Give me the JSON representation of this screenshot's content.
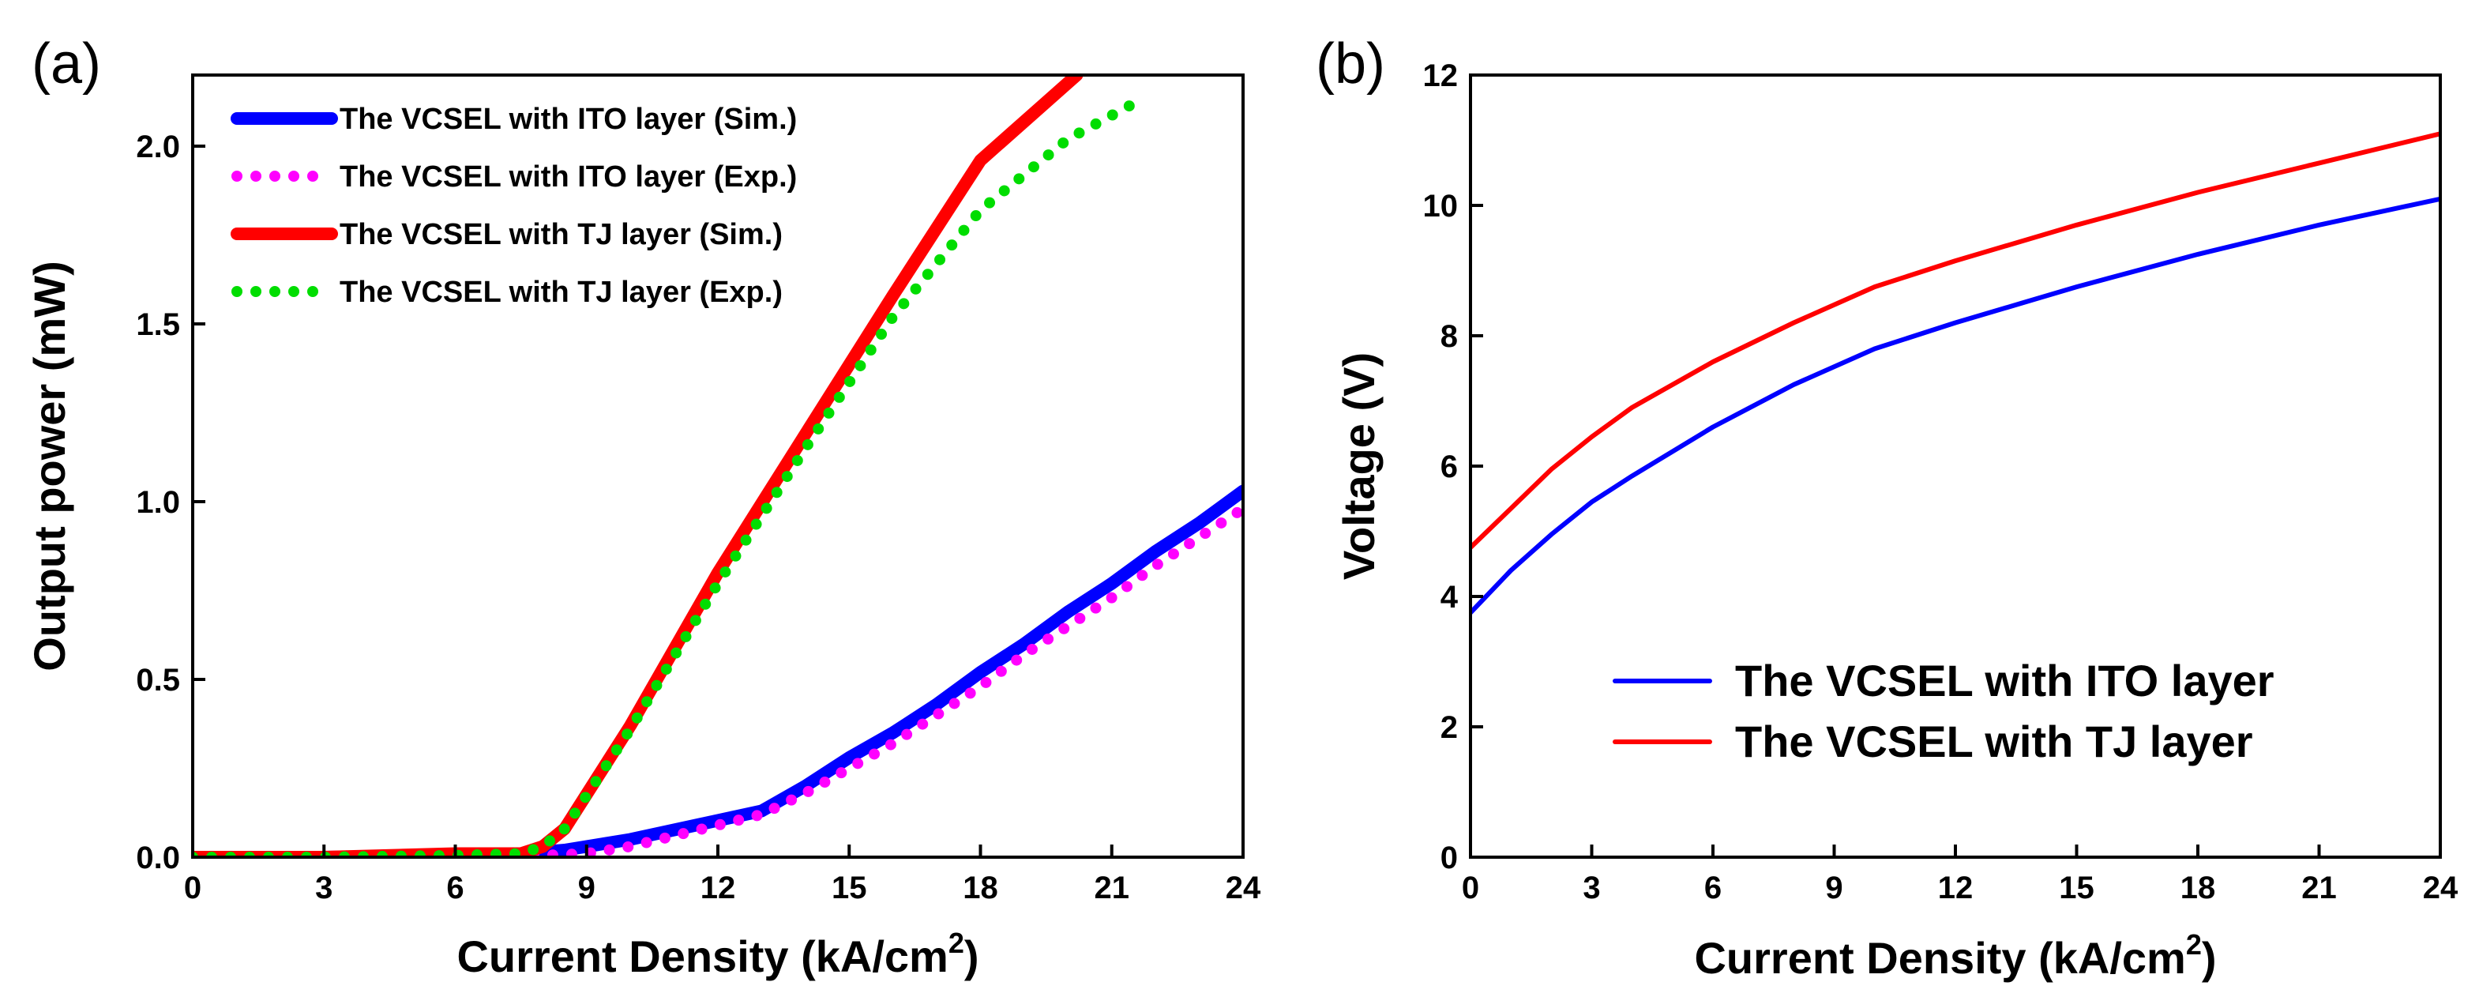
{
  "chart_data": [
    {
      "type": "line",
      "panel_label": "(a)",
      "xlabel": "Current Density (kA/cm",
      "xlabel_sup": "2",
      "xlabel_end": ")",
      "ylabel": "Output power (mW)",
      "xlim": [
        0,
        24
      ],
      "ylim": [
        0,
        2.2
      ],
      "xticks": [
        0,
        3,
        6,
        9,
        12,
        15,
        18,
        21,
        24
      ],
      "yticks": [
        0.0,
        0.5,
        1.0,
        1.5,
        2.0
      ],
      "ytick_labels": [
        "0.0",
        "0.5",
        "1.0",
        "1.5",
        "2.0"
      ],
      "grid": false,
      "legend_position": "top-left",
      "series": [
        {
          "name": "The VCSEL with ITO layer (Sim.)",
          "color": "#0000ff",
          "style": "solid",
          "x": [
            0,
            3,
            6,
            7.5,
            8.5,
            10,
            11.5,
            13,
            14,
            15,
            16,
            17,
            18,
            19,
            20,
            21,
            22,
            23,
            24
          ],
          "y": [
            0.0,
            0.0,
            0.005,
            0.01,
            0.02,
            0.05,
            0.09,
            0.13,
            0.2,
            0.28,
            0.35,
            0.43,
            0.52,
            0.6,
            0.69,
            0.77,
            0.86,
            0.94,
            1.03
          ]
        },
        {
          "name": "The VCSEL with ITO layer (Exp.)",
          "color": "#ff00ff",
          "style": "dotted",
          "x": [
            0,
            3,
            6,
            8,
            9,
            10,
            11,
            12,
            13,
            14,
            15,
            16,
            17,
            18,
            19,
            20,
            21,
            22,
            23,
            24
          ],
          "y": [
            0.0,
            0.0,
            0.0,
            0.005,
            0.01,
            0.03,
            0.06,
            0.09,
            0.12,
            0.18,
            0.25,
            0.32,
            0.4,
            0.48,
            0.57,
            0.65,
            0.73,
            0.82,
            0.9,
            0.98
          ]
        },
        {
          "name": "The VCSEL with TJ layer (Sim.)",
          "color": "#ff0000",
          "style": "solid",
          "x": [
            0,
            3,
            6,
            7.5,
            8,
            8.5,
            10,
            12,
            14,
            16,
            18,
            20.2
          ],
          "y": [
            0.0,
            0.0,
            0.01,
            0.01,
            0.03,
            0.08,
            0.37,
            0.8,
            1.19,
            1.58,
            1.96,
            2.2
          ]
        },
        {
          "name": "The VCSEL with TJ layer (Exp.)",
          "color": "#00dd00",
          "style": "dotted",
          "x": [
            0,
            3,
            6,
            7.5,
            8,
            8.5,
            10,
            12,
            14,
            16,
            18,
            20,
            21.5
          ],
          "y": [
            0.0,
            0.0,
            0.005,
            0.01,
            0.03,
            0.08,
            0.36,
            0.77,
            1.15,
            1.52,
            1.82,
            2.02,
            2.12
          ]
        }
      ]
    },
    {
      "type": "line",
      "panel_label": "(b)",
      "xlabel": "Current Density (kA/cm",
      "xlabel_sup": "2",
      "xlabel_end": ")",
      "ylabel": "Voltage (V)",
      "xlim": [
        0,
        24
      ],
      "ylim": [
        0,
        12
      ],
      "xticks": [
        0,
        3,
        6,
        9,
        12,
        15,
        18,
        21,
        24
      ],
      "yticks": [
        0,
        2,
        4,
        6,
        8,
        10,
        12
      ],
      "ytick_labels": [
        "0",
        "2",
        "4",
        "6",
        "8",
        "10",
        "12"
      ],
      "grid": false,
      "legend_position": "bottom-right",
      "series": [
        {
          "name": "The VCSEL with ITO layer",
          "color": "#0000ff",
          "style": "solid",
          "x": [
            0,
            1,
            2,
            3,
            4,
            6,
            8,
            10,
            12,
            15,
            18,
            21,
            24
          ],
          "y": [
            3.75,
            4.4,
            4.95,
            5.45,
            5.85,
            6.6,
            7.25,
            7.8,
            8.2,
            8.75,
            9.25,
            9.7,
            10.1
          ]
        },
        {
          "name": "The VCSEL with TJ layer",
          "color": "#ff0000",
          "style": "solid",
          "x": [
            0,
            1,
            2,
            3,
            4,
            6,
            8,
            10,
            12,
            15,
            18,
            21,
            24
          ],
          "y": [
            4.75,
            5.35,
            5.95,
            6.45,
            6.9,
            7.6,
            8.2,
            8.75,
            9.15,
            9.7,
            10.2,
            10.65,
            11.1
          ]
        }
      ]
    }
  ]
}
